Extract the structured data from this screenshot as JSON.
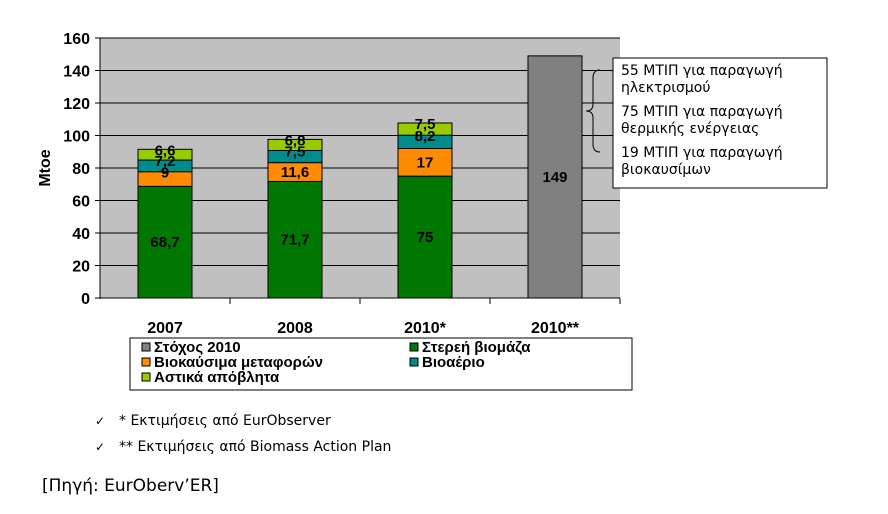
{
  "chart_data": {
    "type": "bar",
    "stacked": true,
    "ylabel": "Mtoe",
    "ylim": [
      0,
      160
    ],
    "yticks": [
      0,
      20,
      40,
      60,
      80,
      100,
      120,
      140,
      160
    ],
    "grid": true,
    "categories": [
      "2007",
      "2008",
      "2010*",
      "2010**"
    ],
    "series": [
      {
        "name": "Στερεή βιομάζα",
        "color": "#007700",
        "values": [
          68.7,
          71.7,
          75,
          null
        ],
        "labels": [
          "68,7",
          "71,7",
          "75",
          ""
        ]
      },
      {
        "name": "Βιοκαύσιμα μεταφορών",
        "color": "#ff8c00",
        "values": [
          9,
          11.6,
          17,
          null
        ],
        "labels": [
          "9",
          "11,6",
          "17",
          ""
        ]
      },
      {
        "name": "Βιοαέριο",
        "color": "#008c8c",
        "values": [
          7.2,
          7.5,
          8.2,
          null
        ],
        "labels": [
          "7,2",
          "7,5",
          "8,2",
          ""
        ]
      },
      {
        "name": "Αστικά απόβλητα",
        "color": "#99cc00",
        "values": [
          6.6,
          6.8,
          7.5,
          null
        ],
        "labels": [
          "6,6",
          "6,8",
          "7,5",
          ""
        ]
      },
      {
        "name": "Στόχος 2010",
        "color": "#808080",
        "values": [
          null,
          null,
          null,
          149
        ],
        "labels": [
          "",
          "",
          "",
          "149"
        ]
      }
    ],
    "legend": {
      "placement": "bottom",
      "items": [
        "Στόχος 2010",
        "Στερεή βιομάζα",
        "Βιοκαύσιμα μεταφορών",
        "Βιοαέριο",
        "Αστικά απόβλητα"
      ]
    },
    "annotations": [
      {
        "lines": [
          "55 ΜΤΙΠ για παραγωγή",
          "ηλεκτρισμού"
        ]
      },
      {
        "lines": [
          "75 ΜΤΙΠ για παραγωγή",
          "θερμικής ενέργειας"
        ]
      },
      {
        "lines": [
          "19 ΜΤΙΠ για παραγωγή",
          "βιοκαυσίμων"
        ]
      }
    ]
  },
  "notes": {
    "items": [
      {
        "icon": "check-icon",
        "text": "* Εκτιμήσεις από EurObserver"
      },
      {
        "icon": "check-icon",
        "text": "** Εκτιμήσεις από Biomass Action Plan"
      }
    ],
    "source": "[Πηγή: EurOberv’ER]"
  },
  "colors": {
    "plot_background": "#c0c0c0",
    "grid": "#000000"
  }
}
